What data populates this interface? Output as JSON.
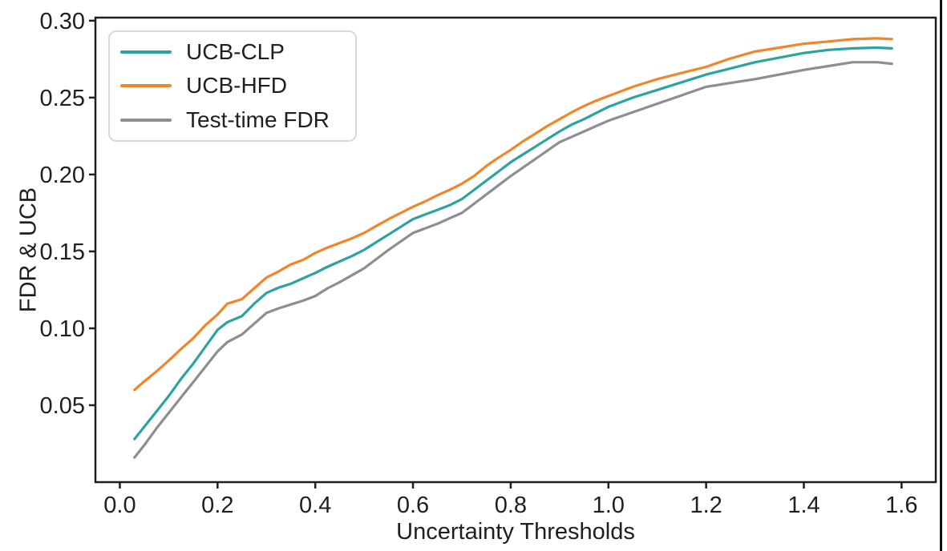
{
  "chart_data": {
    "type": "line",
    "title": "",
    "xlabel": "Uncertainty Thresholds",
    "ylabel": "FDR & UCB",
    "xlim": [
      -0.05,
      1.67
    ],
    "ylim": [
      0.0,
      0.302
    ],
    "grid": false,
    "legend_position": "upper-left",
    "x_ticks": [
      0.0,
      0.2,
      0.4,
      0.6,
      0.8,
      1.0,
      1.2,
      1.4,
      1.6
    ],
    "x_tick_labels": [
      "0.0",
      "0.2",
      "0.4",
      "0.6",
      "0.8",
      "1.0",
      "1.2",
      "1.4",
      "1.6"
    ],
    "y_ticks": [
      0.05,
      0.1,
      0.15,
      0.2,
      0.25,
      0.3
    ],
    "y_tick_labels": [
      "0.05",
      "0.10",
      "0.15",
      "0.20",
      "0.25",
      "0.30"
    ],
    "x": [
      0.03,
      0.05,
      0.075,
      0.1,
      0.125,
      0.15,
      0.175,
      0.2,
      0.22,
      0.25,
      0.275,
      0.3,
      0.325,
      0.35,
      0.375,
      0.4,
      0.425,
      0.45,
      0.475,
      0.5,
      0.525,
      0.55,
      0.575,
      0.6,
      0.625,
      0.65,
      0.675,
      0.7,
      0.725,
      0.75,
      0.775,
      0.8,
      0.825,
      0.85,
      0.875,
      0.9,
      0.925,
      0.95,
      0.975,
      1.0,
      1.05,
      1.1,
      1.15,
      1.2,
      1.25,
      1.3,
      1.35,
      1.4,
      1.45,
      1.5,
      1.55,
      1.58
    ],
    "series": [
      {
        "name": "UCB-CLP",
        "color": "#2ba3a0",
        "values": [
          0.028,
          0.036,
          0.046,
          0.056,
          0.067,
          0.077,
          0.088,
          0.099,
          0.104,
          0.108,
          0.116,
          0.123,
          0.1265,
          0.129,
          0.1325,
          0.136,
          0.14,
          0.1435,
          0.147,
          0.151,
          0.156,
          0.161,
          0.166,
          0.171,
          0.174,
          0.177,
          0.18,
          0.184,
          0.19,
          0.196,
          0.202,
          0.208,
          0.213,
          0.218,
          0.223,
          0.228,
          0.2325,
          0.236,
          0.24,
          0.244,
          0.25,
          0.255,
          0.26,
          0.265,
          0.269,
          0.273,
          0.276,
          0.279,
          0.281,
          0.282,
          0.2825,
          0.282
        ]
      },
      {
        "name": "UCB-HFD",
        "color": "#f0862b",
        "values": [
          0.06,
          0.0655,
          0.072,
          0.079,
          0.0865,
          0.0935,
          0.102,
          0.109,
          0.116,
          0.119,
          0.126,
          0.133,
          0.137,
          0.1415,
          0.1445,
          0.149,
          0.1525,
          0.1555,
          0.1585,
          0.162,
          0.1665,
          0.171,
          0.175,
          0.179,
          0.1825,
          0.1865,
          0.19,
          0.194,
          0.199,
          0.2055,
          0.211,
          0.216,
          0.2215,
          0.2265,
          0.2315,
          0.236,
          0.2405,
          0.2445,
          0.248,
          0.251,
          0.257,
          0.262,
          0.266,
          0.27,
          0.2755,
          0.28,
          0.2825,
          0.285,
          0.2865,
          0.288,
          0.2885,
          0.288
        ]
      },
      {
        "name": "Test-time FDR",
        "color": "#8e8e8e",
        "values": [
          0.016,
          0.024,
          0.035,
          0.045,
          0.055,
          0.065,
          0.075,
          0.085,
          0.091,
          0.096,
          0.103,
          0.11,
          0.113,
          0.1155,
          0.118,
          0.121,
          0.126,
          0.13,
          0.1345,
          0.139,
          0.145,
          0.151,
          0.1565,
          0.162,
          0.165,
          0.168,
          0.1715,
          0.175,
          0.181,
          0.187,
          0.193,
          0.199,
          0.2045,
          0.21,
          0.2155,
          0.221,
          0.2245,
          0.228,
          0.2315,
          0.235,
          0.2405,
          0.246,
          0.2515,
          0.257,
          0.2595,
          0.262,
          0.265,
          0.268,
          0.2705,
          0.273,
          0.273,
          0.272
        ]
      }
    ],
    "style": {
      "axis_color": "#1f1f1f",
      "line_width": 3.2,
      "frame_line_width": 2.5,
      "legend_border_color": "#d9d9d9",
      "figure_right_border_color": "#111111",
      "background": "#ffffff"
    }
  }
}
